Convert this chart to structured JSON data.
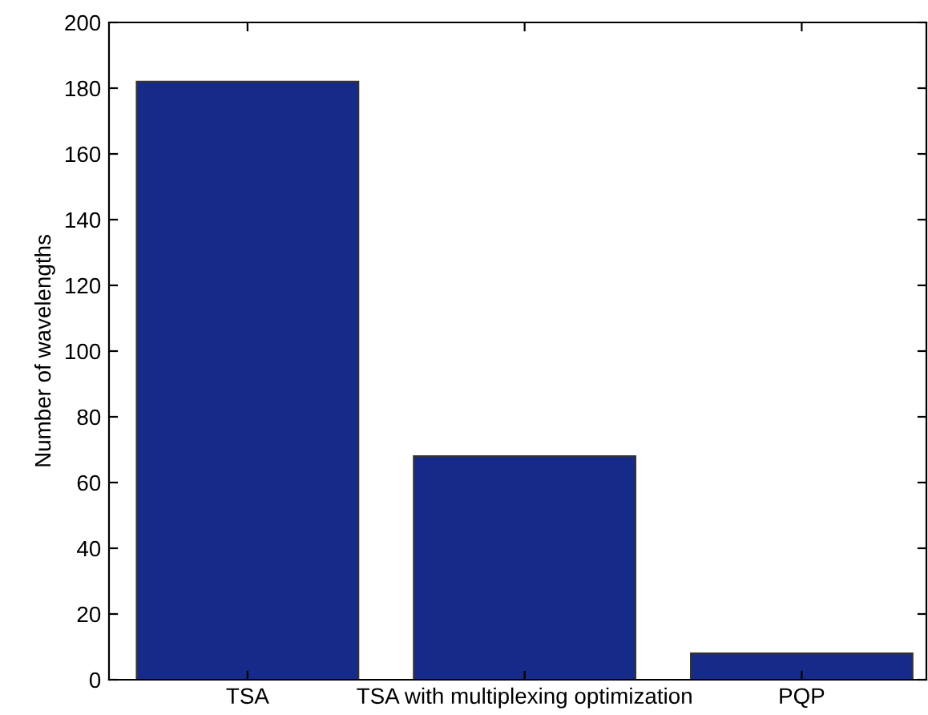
{
  "chart_data": {
    "type": "bar",
    "ylabel": "Number of wavelengths",
    "categories": [
      "TSA",
      "TSA with multiplexing optimization",
      "PQP"
    ],
    "values": [
      182,
      68,
      8
    ],
    "color": "#162a8a",
    "ylim": [
      0,
      200
    ],
    "yticks": [
      0,
      20,
      40,
      60,
      80,
      100,
      120,
      140,
      160,
      180,
      200
    ],
    "grid": false
  }
}
